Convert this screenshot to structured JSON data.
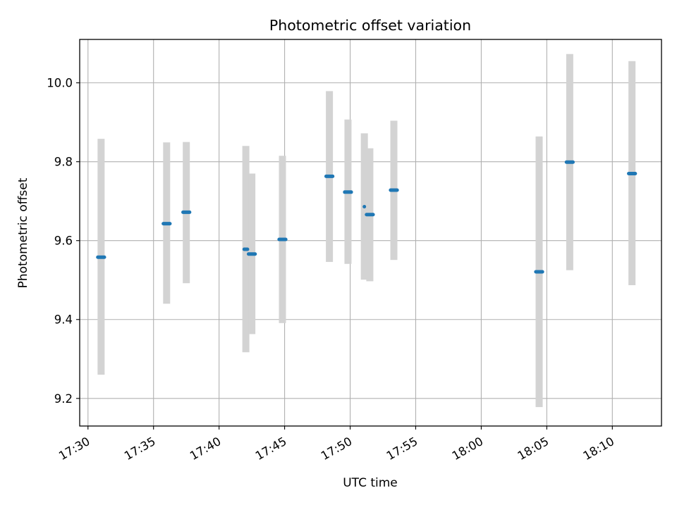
{
  "chart_data": {
    "type": "scatter",
    "title": "Photometric offset variation",
    "xlabel": "UTC time",
    "ylabel": "Photometric offset",
    "x_unit": "UTC time (HH:MM:SS)",
    "xlim": [
      "17:29:22",
      "18:13:45"
    ],
    "ylim": [
      9.13,
      10.11
    ],
    "x_ticks": [
      "17:30",
      "17:35",
      "17:40",
      "17:45",
      "17:50",
      "17:55",
      "18:00",
      "18:05",
      "18:10"
    ],
    "y_ticks": [
      "9.2",
      "9.4",
      "9.6",
      "9.8",
      "10.0"
    ],
    "grid": true,
    "colors": {
      "point": "#1f77b4",
      "errorbar": "#d3d3d3",
      "grid": "#b0b0b0"
    },
    "points": [
      {
        "t0": "17:30:45",
        "t1": "17:31:15",
        "y": 9.558,
        "ylo": 9.26,
        "yhi": 9.858
      },
      {
        "t0": "17:35:45",
        "t1": "17:36:15",
        "y": 9.643,
        "ylo": 9.44,
        "yhi": 9.849
      },
      {
        "t0": "17:37:15",
        "t1": "17:37:45",
        "y": 9.672,
        "ylo": 9.492,
        "yhi": 9.85
      },
      {
        "t0": "17:41:55",
        "t1": "17:42:10",
        "y": 9.578,
        "ylo": 9.317,
        "yhi": 9.84
      },
      {
        "t0": "17:42:15",
        "t1": "17:42:45",
        "y": 9.566,
        "ylo": 9.363,
        "yhi": 9.77
      },
      {
        "t0": "17:44:35",
        "t1": "17:45:05",
        "y": 9.603,
        "ylo": 9.391,
        "yhi": 9.815
      },
      {
        "t0": "17:48:10",
        "t1": "17:48:40",
        "y": 9.763,
        "ylo": 9.546,
        "yhi": 9.979
      },
      {
        "t0": "17:49:35",
        "t1": "17:50:05",
        "y": 9.723,
        "ylo": 9.541,
        "yhi": 9.907
      },
      {
        "t0": "17:51:05",
        "t1": "17:51:05",
        "y": 9.686,
        "ylo": 9.501,
        "yhi": 9.872
      },
      {
        "t0": "17:51:15",
        "t1": "17:51:45",
        "y": 9.666,
        "ylo": 9.497,
        "yhi": 9.834
      },
      {
        "t0": "17:53:05",
        "t1": "17:53:35",
        "y": 9.728,
        "ylo": 9.551,
        "yhi": 9.904
      },
      {
        "t0": "18:04:10",
        "t1": "18:04:40",
        "y": 9.521,
        "ylo": 9.178,
        "yhi": 9.864
      },
      {
        "t0": "18:06:30",
        "t1": "18:07:00",
        "y": 9.799,
        "ylo": 9.525,
        "yhi": 10.073
      },
      {
        "t0": "18:11:15",
        "t1": "18:11:45",
        "y": 9.77,
        "ylo": 9.487,
        "yhi": 10.055
      }
    ]
  }
}
